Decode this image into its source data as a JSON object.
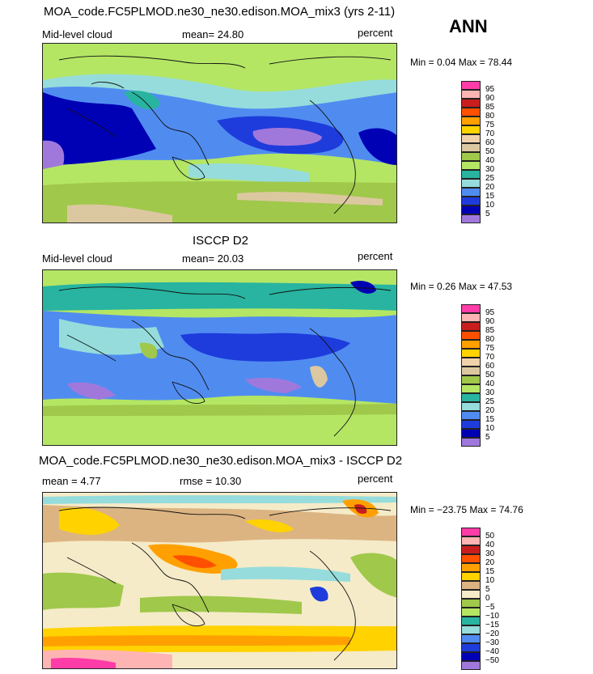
{
  "header": {
    "season": "ANN"
  },
  "panels": [
    {
      "id": "model",
      "title": "MOA_code.FC5PLMOD.ne30_ne30.edison.MOA_mix3 (yrs 2-11)",
      "left_label": "Mid-level cloud",
      "center_label": "mean=  24.80",
      "right_label": "percent",
      "minmax": "Min =   0.04 Max =  78.44",
      "levels": [
        "95",
        "90",
        "85",
        "80",
        "75",
        "70",
        "60",
        "50",
        "40",
        "30",
        "25",
        "20",
        "15",
        "10",
        "5"
      ],
      "colors": [
        "#ff3ca8",
        "#ffb4b4",
        "#c81e1e",
        "#ff5000",
        "#ffa000",
        "#ffd200",
        "#f0d2aa",
        "#dcc8a0",
        "#a0c84b",
        "#b4e664",
        "#28b4a0",
        "#96dcdc",
        "#508cf0",
        "#1e3cdc",
        "#0000b4",
        "#a078dc"
      ]
    },
    {
      "id": "obs",
      "title": "ISCCP D2",
      "left_label": "Mid-level cloud",
      "center_label": "mean=  20.03",
      "right_label": "percent",
      "minmax": "Min =   0.26 Max =  47.53",
      "levels": [
        "95",
        "90",
        "85",
        "80",
        "75",
        "70",
        "60",
        "50",
        "40",
        "30",
        "25",
        "20",
        "15",
        "10",
        "5"
      ],
      "colors": [
        "#ff3ca8",
        "#ffb4b4",
        "#c81e1e",
        "#ff5000",
        "#ffa000",
        "#ffd200",
        "#f0d2aa",
        "#dcc8a0",
        "#a0c84b",
        "#b4e664",
        "#28b4a0",
        "#96dcdc",
        "#508cf0",
        "#1e3cdc",
        "#0000b4",
        "#a078dc"
      ]
    },
    {
      "id": "diff",
      "title": "MOA_code.FC5PLMOD.ne30_ne30.edison.MOA_mix3 - ISCCP D2",
      "left_label": "mean =    4.77",
      "center_label": "rmse =   10.30",
      "right_label": "percent",
      "minmax": "Min = −23.75 Max =  74.76",
      "levels": [
        "50",
        "40",
        "30",
        "20",
        "15",
        "10",
        "5",
        "0",
        "−5",
        "−10",
        "−15",
        "−20",
        "−30",
        "−40",
        "−50"
      ],
      "colors": [
        "#ff3ca8",
        "#ffb4b4",
        "#c81e1e",
        "#ff5000",
        "#ffa000",
        "#ffd200",
        "#dcb482",
        "#f5ebc8",
        "#a0c84b",
        "#b4e664",
        "#28b4a0",
        "#96dcdc",
        "#508cf0",
        "#1e3cdc",
        "#0000b4",
        "#a078dc"
      ]
    }
  ]
}
